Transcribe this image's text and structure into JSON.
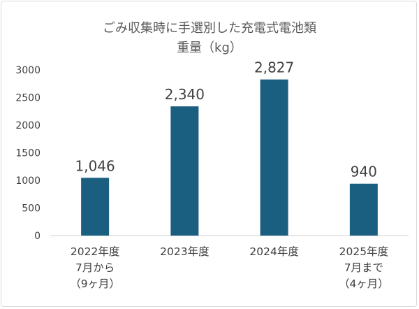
{
  "chart_data": {
    "type": "bar",
    "title": [
      "ごみ収集時に手選別した充電式電池類",
      "重量（kg）"
    ],
    "categories": [
      [
        "2022年度",
        "7月から",
        "（9ヶ月）"
      ],
      [
        "2023年度"
      ],
      [
        "2024年度"
      ],
      [
        "2025年度",
        "7月まで",
        "（4ヶ月）"
      ]
    ],
    "values": [
      1046,
      2340,
      2827,
      940
    ],
    "data_labels": [
      "1,046",
      "2,340",
      "2,827",
      "940"
    ],
    "yticks": [
      "0",
      "500",
      "1000",
      "1500",
      "2000",
      "2500",
      "3000"
    ],
    "ylim": [
      0,
      3000
    ],
    "grid": false,
    "legend": "none",
    "bar_color": "#1a5e80"
  }
}
